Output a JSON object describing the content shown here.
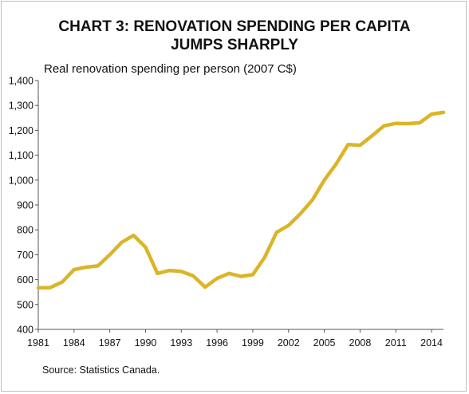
{
  "chart_data": {
    "type": "line",
    "title_lines": [
      "CHART 3: RENOVATION SPENDING PER CAPITA",
      "JUMPS SHARPLY"
    ],
    "subtitle": "Real renovation spending per person (2007 C$)",
    "source": "Source: Statistics Canada.",
    "xlabel": "",
    "ylabel": "",
    "xlim": [
      1981,
      2015
    ],
    "ylim": [
      400,
      1400
    ],
    "x_ticks": [
      1981,
      1984,
      1987,
      1990,
      1993,
      1996,
      1999,
      2002,
      2005,
      2008,
      2011,
      2014
    ],
    "y_ticks": [
      400,
      500,
      600,
      700,
      800,
      900,
      1000,
      1100,
      1200,
      1300,
      1400
    ],
    "y_tick_labels": [
      "400",
      "500",
      "600",
      "700",
      "800",
      "900",
      "1,000",
      "1,100",
      "1,200",
      "1,300",
      "1,400"
    ],
    "grid": false,
    "legend": "none",
    "series": [
      {
        "color": "#dab527",
        "x": [
          1981,
          1982,
          1983,
          1984,
          1985,
          1986,
          1987,
          1988,
          1989,
          1990,
          1991,
          1992,
          1993,
          1994,
          1995,
          1996,
          1997,
          1998,
          1999,
          2000,
          2001,
          2002,
          2003,
          2004,
          2005,
          2006,
          2007,
          2008,
          2009,
          2010,
          2011,
          2012,
          2013,
          2014,
          2015
        ],
        "y": [
          567,
          568,
          590,
          640,
          650,
          655,
          700,
          750,
          778,
          730,
          625,
          637,
          633,
          615,
          570,
          605,
          625,
          613,
          620,
          690,
          790,
          818,
          865,
          920,
          1000,
          1065,
          1143,
          1140,
          1178,
          1218,
          1228,
          1227,
          1230,
          1265,
          1272
        ]
      }
    ]
  }
}
